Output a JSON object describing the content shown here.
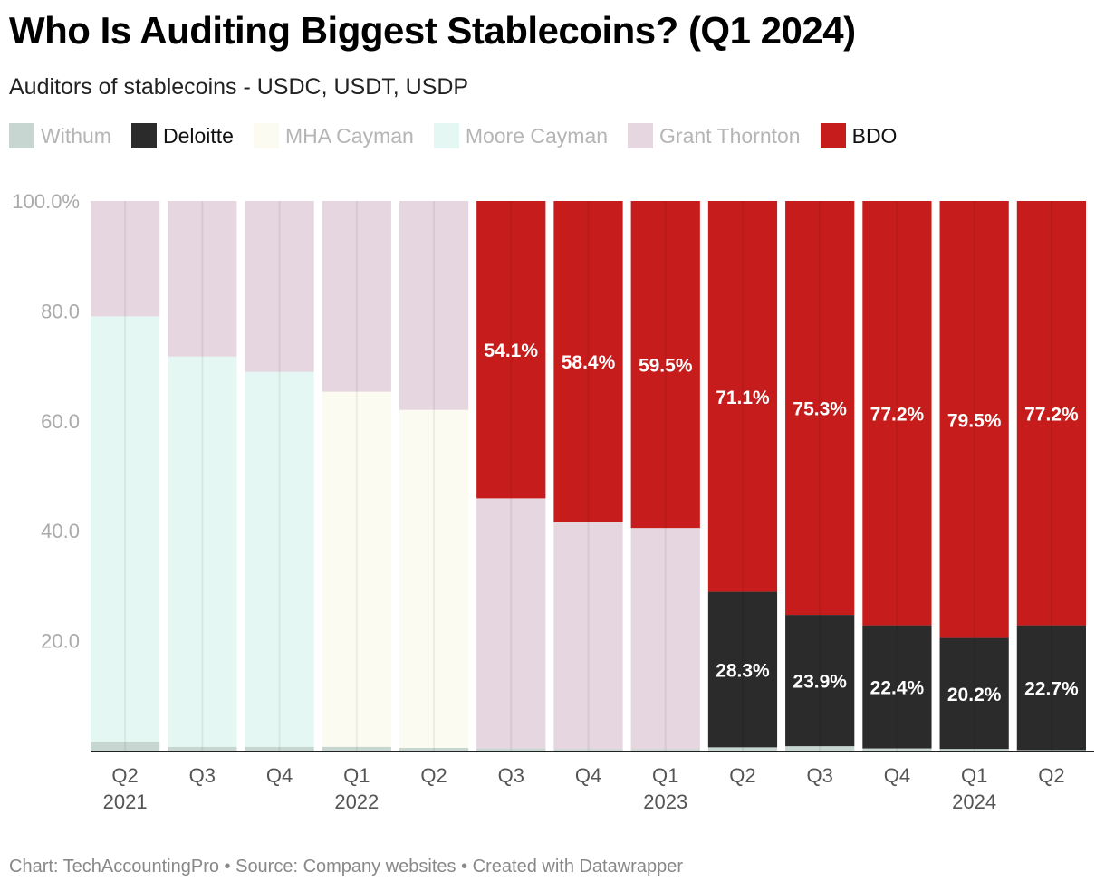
{
  "title": "Who Is Auditing Biggest Stablecoins? (Q1 2024)",
  "subtitle": "Auditors of stablecoins - USDC, USDT, USDP",
  "legend": [
    {
      "name": "Withum",
      "color": "#c7d6d1",
      "label_color": "#b5b5b5"
    },
    {
      "name": "Deloitte",
      "color": "#2b2b2b",
      "label_color": "#111111"
    },
    {
      "name": "MHA Cayman",
      "color": "#fbfbf1",
      "label_color": "#b5b5b5"
    },
    {
      "name": "Moore Cayman",
      "color": "#e5f7f2",
      "label_color": "#b5b5b5"
    },
    {
      "name": "Grant Thornton",
      "color": "#e5d6e0",
      "label_color": "#b5b5b5"
    },
    {
      "name": "BDO",
      "color": "#c61c1c",
      "label_color": "#111111"
    }
  ],
  "footer": "Chart: TechAccountingPro • Source: Company websites • Created with Datawrapper",
  "chart_data": {
    "type": "bar",
    "stacked": true,
    "title": "Who Is Auditing Biggest Stablecoins? (Q1 2024)",
    "ylim": [
      0,
      100
    ],
    "yticks": [
      "100.0%",
      "80.0",
      "60.0",
      "40.0",
      "20.0"
    ],
    "ytick_values": [
      100,
      80,
      60,
      40,
      20
    ],
    "categories": [
      "Q2",
      "Q3",
      "Q4",
      "Q1",
      "Q2",
      "Q3",
      "Q4",
      "Q1",
      "Q2",
      "Q3",
      "Q4",
      "Q1",
      "Q2"
    ],
    "year_labels": [
      "2021",
      "",
      "",
      "2022",
      "",
      "",
      "",
      "2023",
      "",
      "",
      "",
      "2024",
      ""
    ],
    "series": [
      {
        "name": "Withum",
        "color": "#c7d6d1",
        "values": [
          1.6,
          0.7,
          0.7,
          0.7,
          0.5,
          0.4,
          0.3,
          0.3,
          0.6,
          0.8,
          0.4,
          0.3,
          0.1
        ]
      },
      {
        "name": "Deloitte",
        "color": "#2b2b2b",
        "values": [
          0,
          0,
          0,
          0,
          0,
          0,
          0,
          0,
          28.3,
          23.9,
          22.4,
          20.2,
          22.7
        ],
        "labels": [
          "",
          "",
          "",
          "",
          "",
          "",
          "",
          "",
          "28.3%",
          "23.9%",
          "22.4%",
          "20.2%",
          "22.7%"
        ]
      },
      {
        "name": "MHA Cayman",
        "color": "#fbfbf1",
        "values": [
          0,
          0,
          0,
          64.6,
          61.5,
          0,
          0,
          0,
          0,
          0,
          0,
          0,
          0
        ]
      },
      {
        "name": "Moore Cayman",
        "color": "#e5f7f2",
        "values": [
          77.4,
          71.0,
          68.2,
          0,
          0,
          0,
          0,
          0,
          0,
          0,
          0,
          0,
          0
        ]
      },
      {
        "name": "Grant Thornton",
        "color": "#e5d6e0",
        "values": [
          21.0,
          28.3,
          31.1,
          34.7,
          38.0,
          45.5,
          41.3,
          40.2,
          0,
          0,
          0,
          0,
          0
        ]
      },
      {
        "name": "BDO",
        "color": "#c61c1c",
        "values": [
          0,
          0,
          0,
          0,
          0,
          54.1,
          58.4,
          59.5,
          71.1,
          75.3,
          77.2,
          79.5,
          77.2
        ],
        "labels": [
          "",
          "",
          "",
          "",
          "",
          "54.1%",
          "58.4%",
          "59.5%",
          "71.1%",
          "75.3%",
          "77.2%",
          "79.5%",
          "77.2%"
        ]
      }
    ]
  }
}
